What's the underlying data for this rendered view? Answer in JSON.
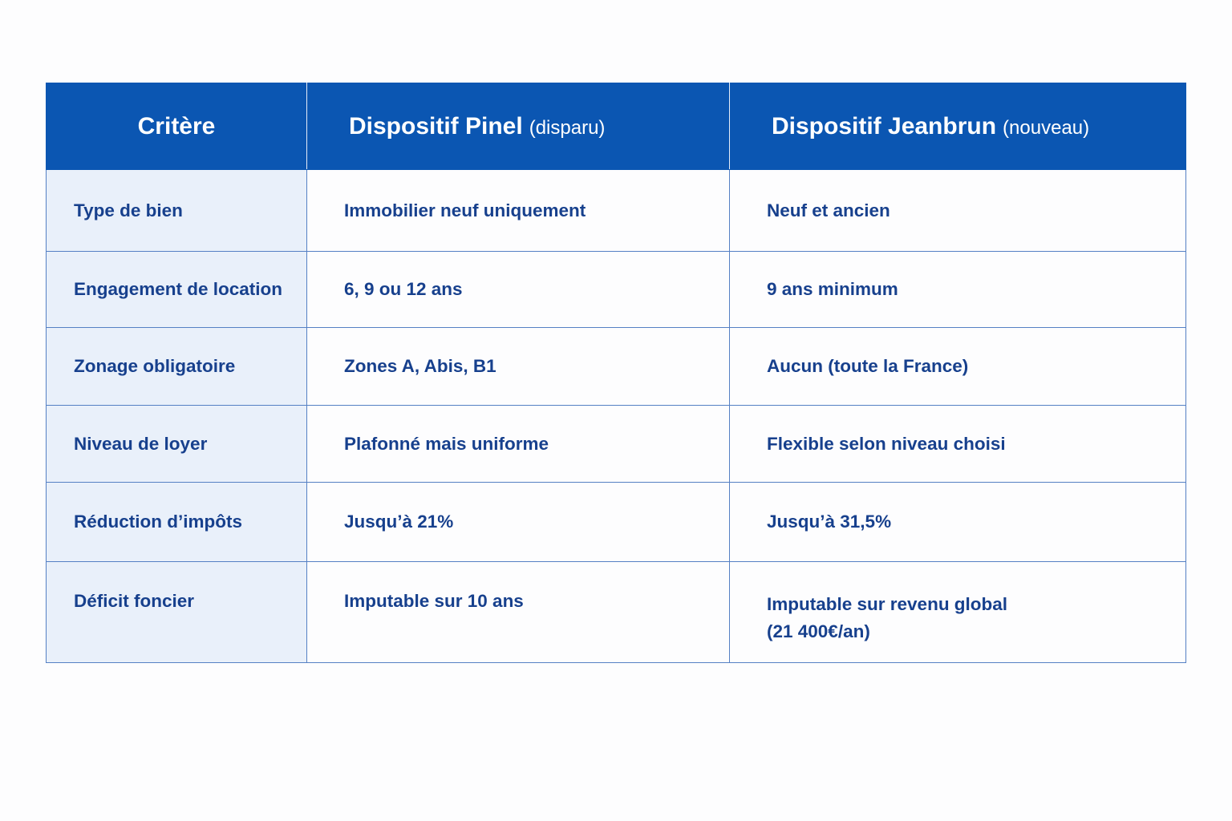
{
  "table": {
    "header": [
      {
        "main": "Critère"
      },
      {
        "main": "Dispositif Pinel",
        "note": "(disparu)"
      },
      {
        "main": "Dispositif Jeanbrun",
        "note": "(nouveau)"
      }
    ],
    "rows": [
      [
        "Type de bien",
        "Immobilier neuf uniquement",
        "Neuf et ancien"
      ],
      [
        "Engagement de location",
        "6, 9 ou 12 ans",
        "9 ans minimum"
      ],
      [
        "Zonage obligatoire",
        "Zones A, Abis, B1",
        "Aucun (toute la France)"
      ],
      [
        "Niveau de loyer",
        "Plafonné mais uniforme",
        "Flexible selon niveau choisi"
      ],
      [
        "Réduction d’impôts",
        "Jusqu’à 21%",
        "Jusqu’à 31,5%"
      ],
      [
        "Déficit foncier",
        "Imputable sur 10 ans",
        [
          "Imputable sur revenu global",
          "(21 400€/an)"
        ]
      ]
    ]
  }
}
